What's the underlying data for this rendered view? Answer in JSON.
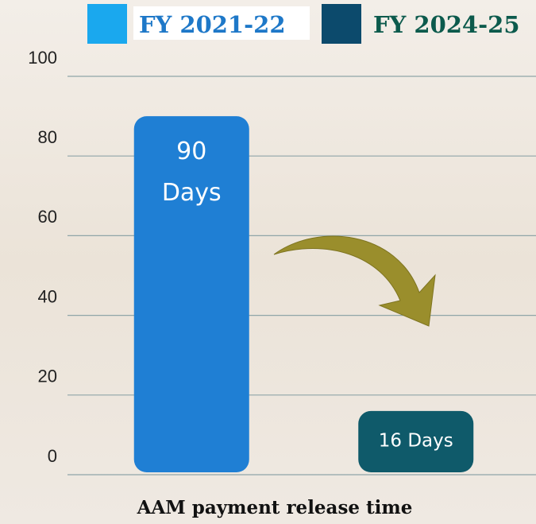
{
  "chart_data": {
    "type": "bar",
    "title": "AAM payment release time",
    "categories": [
      null,
      null
    ],
    "series": [
      {
        "name": "FY 2021-22",
        "color": "#1f7fd4",
        "swatch": "#1aa8ee",
        "text_color": "#1e78c8",
        "values": [
          90,
          null
        ],
        "value_labels": [
          "90 Days",
          null
        ]
      },
      {
        "name": "FY 2024-25",
        "color": "#0f5a6a",
        "swatch": "#0c4a6c",
        "text_color": "#0c5a4c",
        "values": [
          null,
          16
        ],
        "value_labels": [
          null,
          "16 Days"
        ]
      }
    ],
    "ylim": [
      0,
      100
    ],
    "yticks": [
      0,
      20,
      40,
      60,
      80,
      100
    ],
    "grid": true
  }
}
